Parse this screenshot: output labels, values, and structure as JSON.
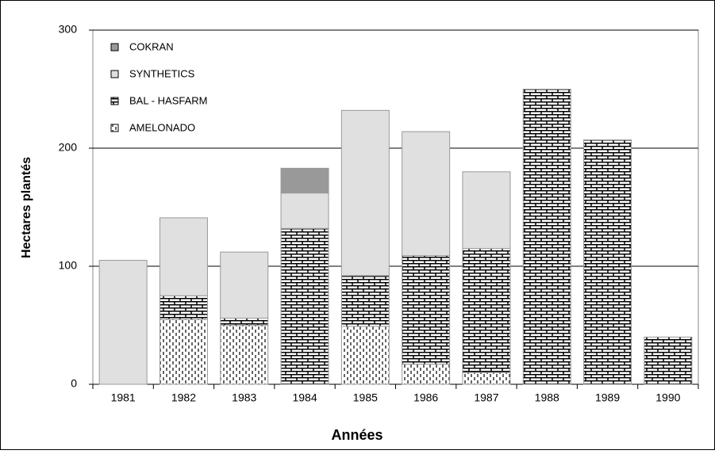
{
  "chart_data": {
    "type": "stacked_bar",
    "x_label": "Années",
    "y_label": "Hectares plantés",
    "categories": [
      "1981",
      "1982",
      "1983",
      "1984",
      "1985",
      "1986",
      "1987",
      "1988",
      "1989",
      "1990"
    ],
    "series": [
      {
        "name": "AMELONADO",
        "color": "#000000",
        "pattern": "dashes",
        "values": [
          0,
          55,
          50,
          0,
          49,
          17,
          10,
          0,
          0,
          0
        ]
      },
      {
        "name": "BAL - HASFARM",
        "color": "#000000",
        "pattern": "bricks",
        "values": [
          0,
          20,
          6,
          132,
          43,
          92,
          105,
          250,
          207,
          40
        ]
      },
      {
        "name": "SYNTHETICS",
        "color": "#e0e0e0",
        "pattern": "none",
        "values": [
          105,
          66,
          56,
          30,
          140,
          105,
          65,
          0,
          0,
          0
        ]
      },
      {
        "name": "COKRAN",
        "color": "#999999",
        "pattern": "none",
        "values": [
          0,
          0,
          0,
          21,
          0,
          0,
          0,
          0,
          0,
          0
        ]
      }
    ],
    "ylim": [
      0,
      300
    ],
    "yticks": [
      0,
      100,
      200,
      300
    ],
    "grid": true
  }
}
